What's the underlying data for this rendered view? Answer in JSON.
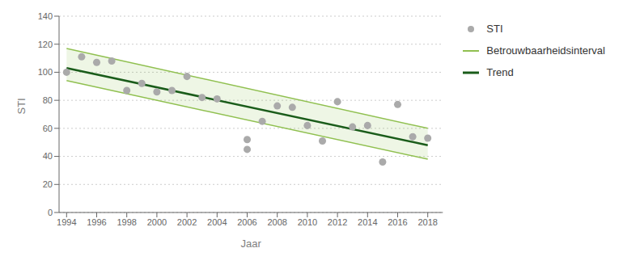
{
  "chart_data": {
    "type": "scatter",
    "xlabel": "Jaar",
    "ylabel": "STI",
    "xlim": [
      1993.5,
      2019
    ],
    "ylim": [
      0,
      140
    ],
    "xticks": [
      1994,
      1996,
      1998,
      2000,
      2002,
      2004,
      2006,
      2008,
      2010,
      2012,
      2014,
      2016,
      2018
    ],
    "yticks": [
      0,
      20,
      40,
      60,
      80,
      100,
      120,
      140
    ],
    "grid": true,
    "legend": "right",
    "series": [
      {
        "name": "STI",
        "type": "scatter",
        "color": "#aaaaaa",
        "marker": "circle",
        "x": [
          1994,
          1995,
          1996,
          1997,
          1998,
          1999,
          2000,
          2001,
          2002,
          2003,
          2004,
          2006,
          2006,
          2007,
          2008,
          2009,
          2010,
          2011,
          2012,
          2013,
          2014,
          2015,
          2016,
          2017,
          2018
        ],
        "values": [
          100,
          111,
          107,
          108,
          87,
          92,
          86,
          87,
          97,
          82,
          81,
          45,
          52,
          65,
          76,
          75,
          62,
          51,
          79,
          61,
          62,
          36,
          77,
          54,
          53
        ]
      },
      {
        "name": "Betrouwbaarheidsinterval",
        "type": "band",
        "color": "#90c050",
        "x": [
          1994,
          2018
        ],
        "upper": [
          117,
          60
        ],
        "lower": [
          94,
          38
        ]
      },
      {
        "name": "Trend",
        "type": "line",
        "color": "#1a5c1a",
        "x": [
          1994,
          2018
        ],
        "values": [
          103,
          48
        ]
      }
    ]
  }
}
